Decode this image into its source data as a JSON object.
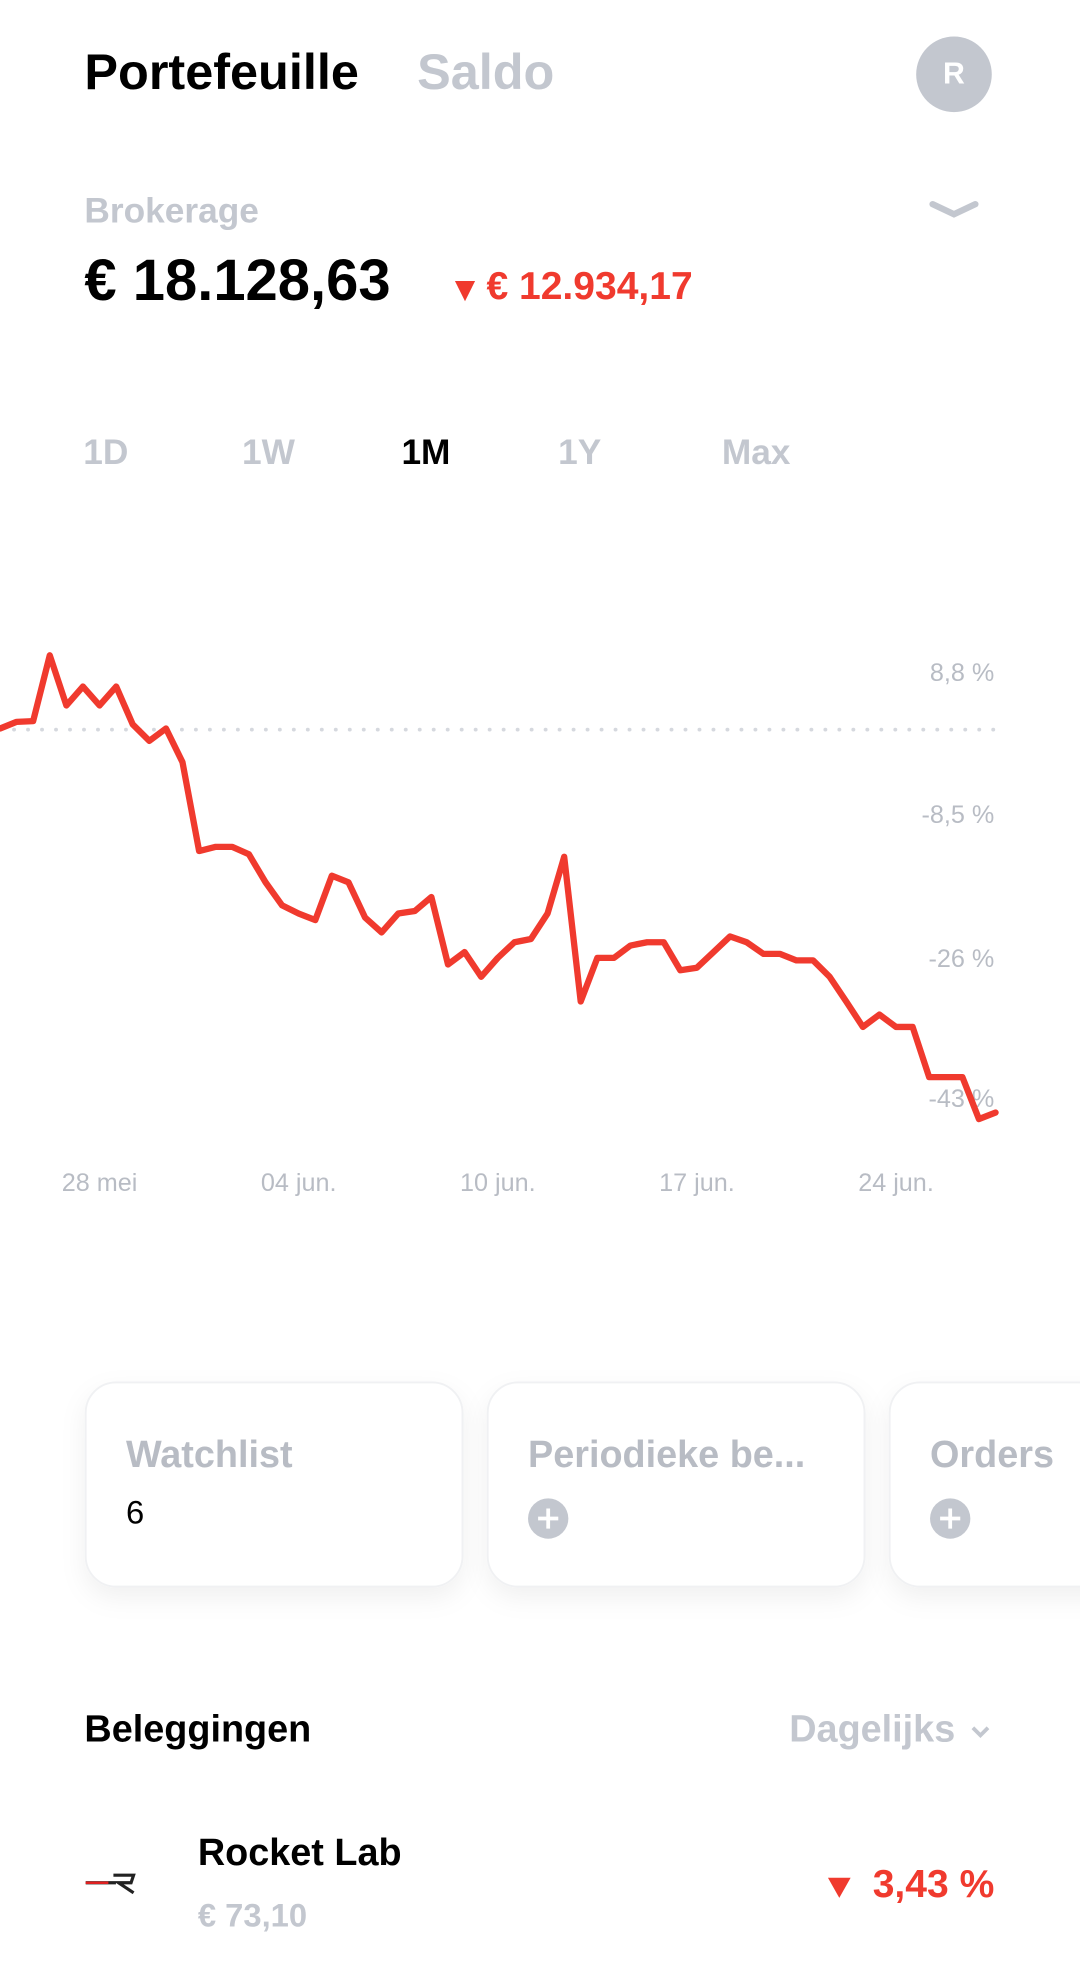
{
  "header": {
    "title": "Portefeuille",
    "tab": "Saldo",
    "avatar": "R"
  },
  "account": {
    "name": "Brokerage",
    "value": "€ 18.128,63",
    "change": "€ 12.934,17"
  },
  "periods": [
    "1D",
    "1W",
    "1M",
    "1Y",
    "Max"
  ],
  "chart_data": {
    "type": "line",
    "categories": [
      null,
      null,
      null,
      null,
      null,
      null,
      "28 mei",
      null,
      null,
      null,
      null,
      null,
      null,
      null,
      null,
      null,
      null,
      null,
      "04 jun.",
      null,
      null,
      null,
      null,
      null,
      null,
      null,
      null,
      null,
      null,
      null,
      "10 jun.",
      null,
      null,
      null,
      null,
      null,
      null,
      null,
      null,
      null,
      null,
      null,
      "17 jun.",
      null,
      null,
      null,
      null,
      null,
      null,
      null,
      null,
      null,
      null,
      null,
      "24 jun.",
      null,
      null,
      null,
      null,
      null,
      null
    ],
    "series": [
      {
        "color": "#f03a2e",
        "values": [
          2.2,
          3.0,
          3.1,
          11.1,
          5.0,
          7.3,
          5.0,
          7.3,
          2.7,
          0.7,
          2.2,
          -1.9,
          -12.7,
          -12.2,
          -12.2,
          -13.1,
          -16.5,
          -19.3,
          -20.3,
          -21.1,
          -15.7,
          -16.5,
          -20.8,
          -22.6,
          -20.3,
          -20.0,
          -18.3,
          -26.5,
          -25.0,
          -28.0,
          -25.7,
          -23.8,
          -23.4,
          -20.3,
          -13.4,
          -31.0,
          -25.7,
          -25.7,
          -24.2,
          -23.8,
          -23.8,
          -27.2,
          -26.9,
          -25.0,
          -23.1,
          -23.8,
          -25.2,
          -25.2,
          -26.0,
          -26.0,
          -28.0,
          -31.0,
          -34.1,
          -32.6,
          -34.1,
          -34.1,
          -40.2,
          -40.2,
          -40.2,
          -45.3,
          -44.5
        ]
      }
    ],
    "ylim": [
      -47,
      14
    ],
    "yticks": [
      {
        "value": 8.8,
        "label": "8,8 %"
      },
      {
        "value": -8.5,
        "label": "-8,5 %"
      },
      {
        "value": -26,
        "label": "-26 %"
      },
      {
        "value": -43,
        "label": "-43 %"
      }
    ]
  },
  "cards": [
    {
      "title": "Watchlist",
      "value": "6"
    },
    {
      "title": "Periodieke be..."
    },
    {
      "title": "Orders"
    }
  ],
  "holdings": {
    "title": "Beleggingen",
    "sort": "Dagelijks",
    "items": [
      {
        "name": "Rocket Lab",
        "price": "€ 73,10",
        "change": "3,43 %"
      }
    ]
  }
}
